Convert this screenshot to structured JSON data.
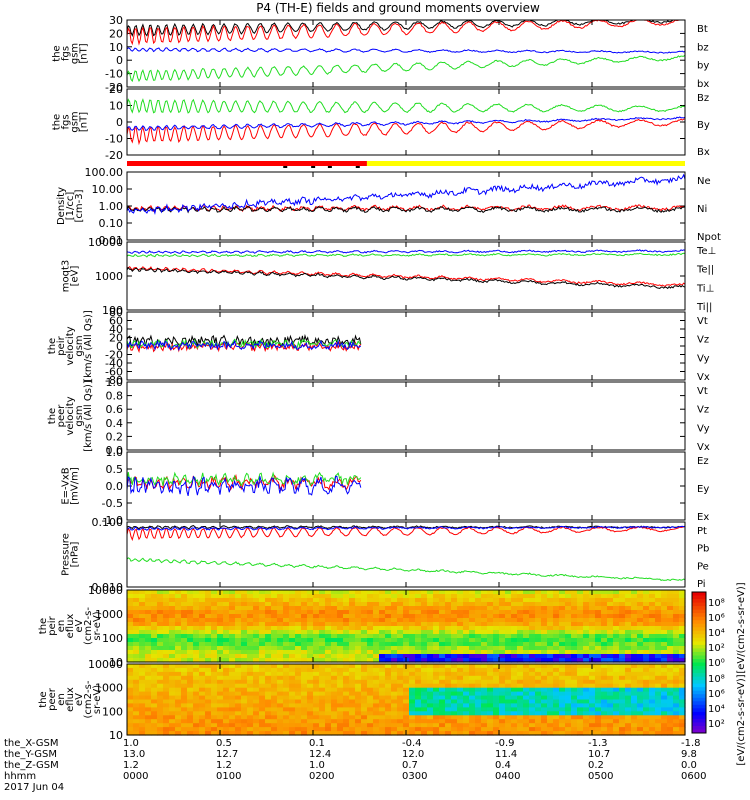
{
  "title": "P4 (TH-E) fields and ground moments overview",
  "colors": {
    "black": "#000000",
    "red": "#ff0000",
    "green": "#22dd22",
    "blue": "#0000ff",
    "yellow": "#ffff00"
  },
  "chart_data": [
    {
      "type": "line",
      "id": "p1",
      "ylabel": [
        "the",
        "fgs",
        "gsm",
        "[nT]"
      ],
      "yticks": [
        "30",
        "20",
        "10",
        "0",
        "-10",
        "-20"
      ],
      "ylim": [
        -20,
        30
      ],
      "series": [
        {
          "name": "Bt",
          "color": "black",
          "base": 22,
          "trend": 8,
          "osc": 4,
          "noise": 0.6
        },
        {
          "name": "bz",
          "color": "red",
          "base": 18,
          "trend": 11,
          "osc": 6,
          "noise": 0.6
        },
        {
          "name": "by",
          "color": "green",
          "base": -12,
          "trend": 14,
          "osc": 4,
          "noise": 0.5
        },
        {
          "name": "bx",
          "color": "blue",
          "base": 8,
          "trend": -2,
          "osc": 1.2,
          "noise": 0.4
        }
      ]
    },
    {
      "type": "line",
      "id": "p2",
      "ylabel": [
        "the",
        "fgs",
        "gsm",
        "[nT]"
      ],
      "yticks": [
        "20",
        "10",
        "0",
        "-10",
        "-20"
      ],
      "ylim": [
        -25,
        25
      ],
      "series": [
        {
          "name": "Bz",
          "color": "red",
          "base": -10,
          "trend": 10,
          "osc": 6,
          "noise": 0.6
        },
        {
          "name": "By",
          "color": "green",
          "base": 12,
          "trend": -2,
          "osc": 5,
          "noise": 0.5
        },
        {
          "name": "Bx",
          "color": "blue",
          "base": -5,
          "trend": 8,
          "osc": 1.5,
          "noise": 0.5
        }
      ]
    },
    {
      "type": "line",
      "id": "p3",
      "ylabel": [
        "Density",
        "[1/cc]",
        "[cm-3]"
      ],
      "yticks": [
        "100.00",
        "10.00",
        "1.00",
        "0.10",
        "0.01"
      ],
      "ylog": true,
      "ylim": [
        -2,
        2
      ],
      "series": [
        {
          "name": "Ne",
          "color": "red",
          "base": -0.15,
          "trend": 0.05,
          "osc": 0.1,
          "noise": 0.08
        },
        {
          "name": "Ni",
          "color": "black",
          "base": -0.2,
          "trend": 0.0,
          "osc": 0.1,
          "noise": 0.08
        },
        {
          "name": "Npot",
          "color": "blue",
          "base": -0.3,
          "trend": 1.9,
          "osc": 0.1,
          "noise": 0.15
        }
      ]
    },
    {
      "type": "line",
      "id": "p4",
      "ylabel": [
        "moqt3",
        "[eV]"
      ],
      "yticks": [
        "10000",
        "1000",
        "100"
      ],
      "ylog": true,
      "ylim": [
        1,
        4
      ],
      "series": [
        {
          "name": "Te⊥",
          "color": "red",
          "base": 2.85,
          "trend": -0.75,
          "osc": 0.05,
          "noise": 0.04
        },
        {
          "name": "Te||",
          "color": "black",
          "base": 2.8,
          "trend": -0.8,
          "osc": 0.05,
          "noise": 0.04
        },
        {
          "name": "Ti⊥",
          "color": "blue",
          "base": 3.55,
          "trend": 0.05,
          "osc": 0.03,
          "noise": 0.03
        },
        {
          "name": "Ti||",
          "color": "green",
          "base": 3.4,
          "trend": 0.05,
          "osc": 0.03,
          "noise": 0.03
        }
      ]
    },
    {
      "type": "line",
      "id": "p5",
      "ylabel": [
        "the",
        "peir",
        "velocity",
        "gsm",
        "[km/s (All Qs)]"
      ],
      "yticks": [
        "80",
        "60",
        "40",
        "20",
        "0",
        "-20",
        "-40",
        "-60",
        "-80"
      ],
      "ylim": [
        -80,
        80
      ],
      "xend": 0.42,
      "series": [
        {
          "name": "Vt",
          "color": "black",
          "base": 12,
          "trend": 0,
          "osc": 4,
          "noise": 9
        },
        {
          "name": "Vz",
          "color": "red",
          "base": -2,
          "trend": 0,
          "osc": 3,
          "noise": 8
        },
        {
          "name": "Vy",
          "color": "green",
          "base": 5,
          "trend": 0,
          "osc": 3,
          "noise": 8
        },
        {
          "name": "Vx",
          "color": "blue",
          "base": 2,
          "trend": 0,
          "osc": 3,
          "noise": 8
        }
      ]
    },
    {
      "type": "line",
      "id": "p6",
      "ylabel": [
        "the",
        "peer",
        "velocity",
        "gsm",
        "[km/s (All Qs)]"
      ],
      "yticks": [
        "1.0",
        "0.8",
        "0.6",
        "0.4",
        "0.2",
        "0.0"
      ],
      "ylim": [
        0,
        1
      ],
      "empty": true,
      "series": [
        {
          "name": "Vt",
          "color": "black"
        },
        {
          "name": "Vz",
          "color": "red"
        },
        {
          "name": "Vy",
          "color": "green"
        },
        {
          "name": "Vx",
          "color": "blue"
        }
      ]
    },
    {
      "type": "line",
      "id": "p7",
      "ylabel": [
        "E=-VxB",
        "[mV/m]"
      ],
      "yticks": [
        "1.0",
        "0.5",
        "0.0",
        "-0.5",
        "-1.0"
      ],
      "ylim": [
        -1,
        1
      ],
      "xend": 0.42,
      "series": [
        {
          "name": "Ez",
          "color": "red",
          "base": 0.1,
          "trend": 0,
          "osc": 0.1,
          "noise": 0.12
        },
        {
          "name": "Ey",
          "color": "green",
          "base": 0.2,
          "trend": 0,
          "osc": 0.1,
          "noise": 0.12
        },
        {
          "name": "Ex",
          "color": "blue",
          "base": 0.0,
          "trend": 0,
          "osc": 0.15,
          "noise": 0.15
        }
      ]
    },
    {
      "type": "line",
      "id": "p8",
      "ylabel": [
        "Pressure",
        "[nPa]"
      ],
      "yticks": [
        "0.100",
        "0.010"
      ],
      "ylog": true,
      "ylim": [
        -2.3,
        -0.4
      ],
      "series": [
        {
          "name": "Pt",
          "color": "black",
          "base": -0.55,
          "trend": 0.0,
          "osc": 0.03,
          "noise": 0.02
        },
        {
          "name": "Pb",
          "color": "red",
          "base": -0.75,
          "trend": 0.15,
          "osc": 0.15,
          "noise": 0.02
        },
        {
          "name": "Pe",
          "color": "green",
          "base": -1.5,
          "trend": -0.6,
          "osc": 0.04,
          "noise": 0.02
        },
        {
          "name": "Pi",
          "color": "blue",
          "base": -0.6,
          "trend": 0.05,
          "osc": 0.03,
          "noise": 0.02
        }
      ]
    },
    {
      "type": "heatmap",
      "id": "p9",
      "ylabel": [
        "the",
        "peir",
        "en",
        "eflux",
        "eV",
        "(cm2-s-",
        "sr-eV)"
      ],
      "yticks": [
        "10000",
        "1000",
        "100",
        "10"
      ]
    },
    {
      "type": "heatmap",
      "id": "p10",
      "ylabel": [
        "the",
        "peer",
        "en",
        "eflux",
        "eV",
        "(cm2-s-",
        "sr-eV)"
      ],
      "yticks": [
        "10000",
        "1000",
        "100",
        "10"
      ]
    }
  ],
  "colorbar": {
    "label": "[eV/(cm2-s-sr-eV)]",
    "label2": "[eV/(cm2-s-sr-eV)]",
    "ticks1": [
      "10⁸",
      "10⁶",
      "10⁴",
      "10²",
      "10⁰"
    ],
    "ticks2": [
      "10⁸",
      "10⁶",
      "10⁴",
      "10²"
    ]
  },
  "xaxis": {
    "rows": [
      {
        "label": "the_X-GSM",
        "values": [
          "1.0",
          "0.5",
          "0.1",
          "-0.4",
          "-0.9",
          "-1.3",
          "-1.8"
        ]
      },
      {
        "label": "the_Y-GSM",
        "values": [
          "13.0",
          "12.7",
          "12.4",
          "12.0",
          "11.4",
          "10.7",
          "9.8"
        ]
      },
      {
        "label": "the_Z-GSM",
        "values": [
          "1.2",
          "1.2",
          "1.0",
          "0.7",
          "0.4",
          "0.2",
          "0.0"
        ]
      },
      {
        "label": "hhmm",
        "values": [
          "0000",
          "0100",
          "0200",
          "0300",
          "0400",
          "0500",
          "0600"
        ]
      }
    ],
    "date": "2017 Jun 04"
  }
}
